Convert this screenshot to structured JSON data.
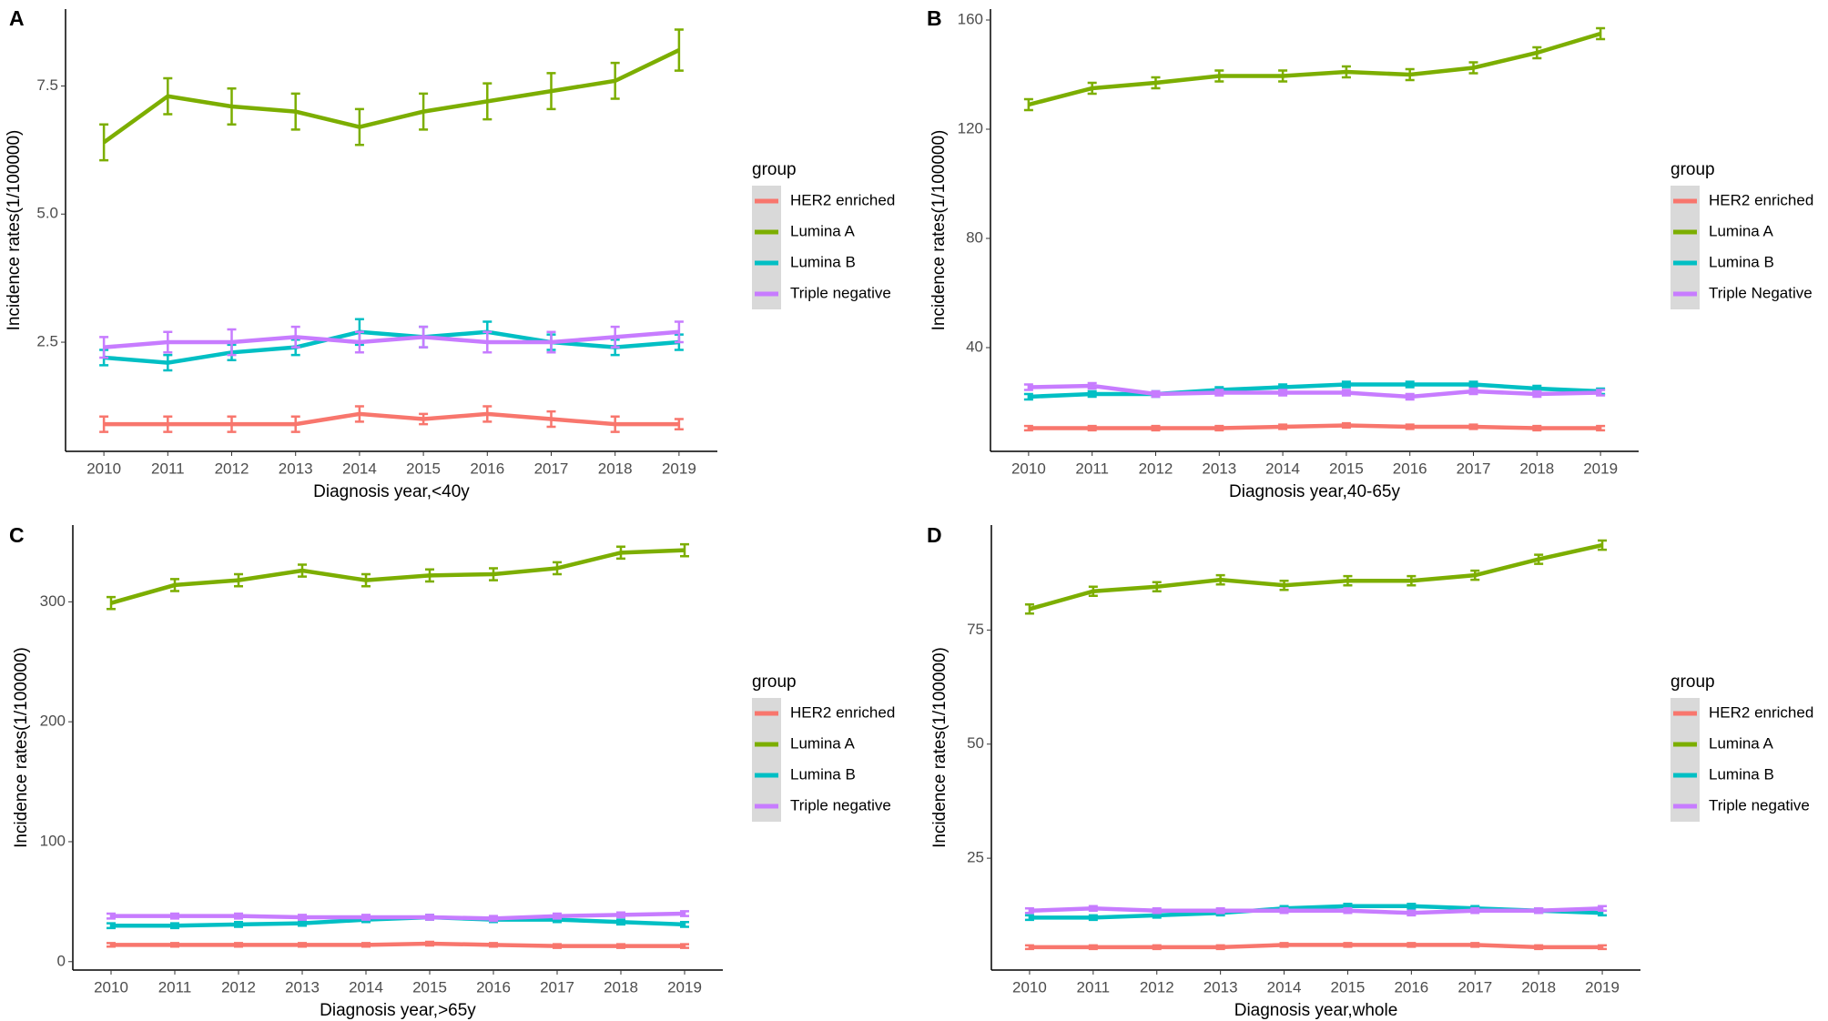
{
  "chart_data": [
    {
      "type": "line",
      "panel_label": "A",
      "xlabel": "Diagnosis year,<40y",
      "ylabel": "Incidence rates(1/100000)",
      "legend_title": "group",
      "categories": [
        "2010",
        "2011",
        "2012",
        "2013",
        "2014",
        "2015",
        "2016",
        "2017",
        "2018",
        "2019"
      ],
      "ylim": [
        0.37,
        9.0
      ],
      "yticks": [
        2.5,
        {
          "value": 5,
          "label": "5.0"
        },
        7.5
      ],
      "series": [
        {
          "name": "HER2 enriched",
          "color": "#F8766D",
          "values": [
            0.9,
            0.9,
            0.9,
            0.9,
            1.1,
            1.0,
            1.1,
            1.0,
            0.9,
            0.9
          ],
          "errors": [
            0.15,
            0.15,
            0.15,
            0.15,
            0.15,
            0.1,
            0.15,
            0.15,
            0.15,
            0.1
          ]
        },
        {
          "name": "Lumina A",
          "color": "#7CAE00",
          "values": [
            6.4,
            7.3,
            7.1,
            7.0,
            6.7,
            7.0,
            7.2,
            7.4,
            7.6,
            8.2
          ],
          "errors": [
            0.35,
            0.35,
            0.35,
            0.35,
            0.35,
            0.35,
            0.35,
            0.35,
            0.35,
            0.4
          ]
        },
        {
          "name": "Lumina B",
          "color": "#00BFC4",
          "values": [
            2.2,
            2.1,
            2.3,
            2.4,
            2.7,
            2.6,
            2.7,
            2.5,
            2.4,
            2.5
          ],
          "errors": [
            0.15,
            0.15,
            0.15,
            0.15,
            0.25,
            0.2,
            0.2,
            0.15,
            0.15,
            0.15
          ]
        },
        {
          "name": "Triple negative",
          "color": "#C77CFF",
          "values": [
            2.4,
            2.5,
            2.5,
            2.6,
            2.5,
            2.6,
            2.5,
            2.5,
            2.6,
            2.7
          ],
          "errors": [
            0.2,
            0.2,
            0.25,
            0.2,
            0.2,
            0.2,
            0.2,
            0.2,
            0.2,
            0.2
          ]
        }
      ]
    },
    {
      "type": "line",
      "panel_label": "B",
      "xlabel": "Diagnosis year,40-65y",
      "ylabel": "Incidence rates(1/100000)",
      "legend_title": "group",
      "categories": [
        "2010",
        "2011",
        "2012",
        "2013",
        "2014",
        "2015",
        "2016",
        "2017",
        "2018",
        "2019"
      ],
      "ylim": [
        2,
        164
      ],
      "yticks": [
        40,
        80,
        120,
        160
      ],
      "series": [
        {
          "name": "HER2 enriched",
          "color": "#F8766D",
          "values": [
            10.5,
            10.5,
            10.5,
            10.5,
            11,
            11.5,
            11,
            11,
            10.5,
            10.5
          ],
          "errors": [
            0.8,
            0.8,
            0.8,
            0.8,
            0.8,
            0.8,
            0.8,
            0.8,
            0.8,
            0.8
          ]
        },
        {
          "name": "Lumina A",
          "color": "#7CAE00",
          "values": [
            129,
            135,
            137,
            139.5,
            139.5,
            141,
            140,
            142.5,
            148,
            155
          ],
          "errors": [
            2,
            2,
            2,
            2,
            2,
            2,
            2,
            2,
            2,
            2
          ]
        },
        {
          "name": "Lumina B",
          "color": "#00BFC4",
          "values": [
            22,
            23,
            23,
            24.5,
            25.5,
            26.5,
            26.5,
            26.5,
            25,
            24
          ],
          "errors": [
            1,
            1,
            1,
            1,
            1,
            1,
            1,
            1,
            1,
            1
          ]
        },
        {
          "name": "Triple Negative",
          "color": "#C77CFF",
          "values": [
            25.5,
            26,
            23,
            23.5,
            23.5,
            23.5,
            22,
            24,
            23,
            23.5
          ],
          "errors": [
            1,
            1,
            1,
            1,
            1,
            1,
            1,
            1,
            1,
            1
          ]
        }
      ]
    },
    {
      "type": "line",
      "panel_label": "C",
      "xlabel": "Diagnosis year,>65y",
      "ylabel": "Incidence rates(1/100000)",
      "legend_title": "group",
      "categories": [
        "2010",
        "2011",
        "2012",
        "2013",
        "2014",
        "2015",
        "2016",
        "2017",
        "2018",
        "2019"
      ],
      "ylim": [
        -7,
        364
      ],
      "yticks": [
        0,
        100,
        200,
        300
      ],
      "series": [
        {
          "name": "HER2 enriched",
          "color": "#F8766D",
          "values": [
            14,
            14,
            14,
            14,
            14,
            15,
            14,
            13,
            13,
            13
          ],
          "errors": [
            1.5,
            1.5,
            1.5,
            1.5,
            1.5,
            1.5,
            1.5,
            1.5,
            1.5,
            1.5
          ]
        },
        {
          "name": "Lumina A",
          "color": "#7CAE00",
          "values": [
            299,
            314,
            318,
            326,
            318,
            322,
            323,
            328,
            341,
            343
          ],
          "errors": [
            5,
            5,
            5,
            5,
            5,
            5,
            5,
            5,
            5,
            5
          ]
        },
        {
          "name": "Lumina B",
          "color": "#00BFC4",
          "values": [
            30,
            30,
            31,
            32,
            35,
            37,
            35,
            35,
            33,
            31
          ],
          "errors": [
            2,
            2,
            2,
            2,
            2,
            2,
            2,
            2,
            2,
            2
          ]
        },
        {
          "name": "Triple negative",
          "color": "#C77CFF",
          "values": [
            38,
            38,
            38,
            37,
            37,
            37,
            36,
            38,
            39,
            40
          ],
          "errors": [
            2,
            2,
            2,
            2,
            2,
            2,
            2,
            2,
            2,
            2
          ]
        }
      ]
    },
    {
      "type": "line",
      "panel_label": "D",
      "xlabel": "Diagnosis year,whole",
      "ylabel": "Incidence rates(1/100000)",
      "legend_title": "group",
      "categories": [
        "2010",
        "2011",
        "2012",
        "2013",
        "2014",
        "2015",
        "2016",
        "2017",
        "2018",
        "2019"
      ],
      "ylim": [
        0.5,
        98
      ],
      "yticks": [
        25,
        50,
        75
      ],
      "series": [
        {
          "name": "HER2 enriched",
          "color": "#F8766D",
          "values": [
            5.5,
            5.5,
            5.5,
            5.5,
            6,
            6,
            6,
            6,
            5.5,
            5.5
          ],
          "errors": [
            0.4,
            0.4,
            0.4,
            0.4,
            0.4,
            0.4,
            0.4,
            0.4,
            0.4,
            0.4
          ]
        },
        {
          "name": "Lumina A",
          "color": "#7CAE00",
          "values": [
            79.6,
            83.5,
            84.5,
            86,
            84.8,
            85.8,
            85.8,
            87,
            90.5,
            93.6
          ],
          "errors": [
            1,
            1,
            1,
            1,
            1,
            1,
            1,
            1,
            1,
            1
          ]
        },
        {
          "name": "Lumina B",
          "color": "#00BFC4",
          "values": [
            12,
            12,
            12.5,
            13,
            14,
            14.5,
            14.5,
            14,
            13.5,
            13
          ],
          "errors": [
            0.5,
            0.5,
            0.5,
            0.5,
            0.5,
            0.5,
            0.5,
            0.5,
            0.5,
            0.5
          ]
        },
        {
          "name": "Triple negative",
          "color": "#C77CFF",
          "values": [
            13.5,
            14,
            13.5,
            13.5,
            13.5,
            13.5,
            13,
            13.5,
            13.5,
            14
          ],
          "errors": [
            0.5,
            0.5,
            0.5,
            0.5,
            0.5,
            0.5,
            0.5,
            0.5,
            0.5,
            0.5
          ]
        }
      ]
    }
  ]
}
